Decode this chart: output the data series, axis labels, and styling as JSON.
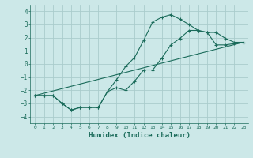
{
  "xlabel": "Humidex (Indice chaleur)",
  "xlim": [
    -0.5,
    23.5
  ],
  "ylim": [
    -4.5,
    4.5
  ],
  "xticks": [
    0,
    1,
    2,
    3,
    4,
    5,
    6,
    7,
    8,
    9,
    10,
    11,
    12,
    13,
    14,
    15,
    16,
    17,
    18,
    19,
    20,
    21,
    22,
    23
  ],
  "yticks": [
    -4,
    -3,
    -2,
    -1,
    0,
    1,
    2,
    3,
    4
  ],
  "bg_color": "#cce8e8",
  "grid_color": "#aacccc",
  "line_color": "#1a6b5a",
  "curve1_x": [
    0,
    1,
    2,
    3,
    4,
    5,
    6,
    7,
    8,
    9,
    10,
    11,
    12,
    13,
    14,
    15,
    16,
    17,
    18,
    19,
    20,
    21,
    22,
    23
  ],
  "curve1_y": [
    -2.4,
    -2.4,
    -2.4,
    -3.0,
    -3.5,
    -3.3,
    -3.3,
    -3.3,
    -2.1,
    -1.2,
    -0.2,
    0.5,
    1.8,
    3.2,
    3.55,
    3.75,
    3.4,
    3.0,
    2.55,
    2.4,
    1.45,
    1.45,
    1.55,
    1.65
  ],
  "curve2_x": [
    0,
    1,
    2,
    3,
    4,
    5,
    6,
    7,
    8,
    9,
    10,
    11,
    12,
    13,
    14,
    15,
    16,
    17,
    18,
    19,
    20,
    21,
    22,
    23
  ],
  "curve2_y": [
    -2.4,
    -2.4,
    -2.4,
    -3.0,
    -3.5,
    -3.3,
    -3.3,
    -3.3,
    -2.1,
    -1.8,
    -2.0,
    -1.3,
    -0.45,
    -0.45,
    0.45,
    1.45,
    1.95,
    2.55,
    2.55,
    2.4,
    2.4,
    1.95,
    1.65,
    1.65
  ],
  "line3_x": [
    0,
    23
  ],
  "line3_y": [
    -2.4,
    1.65
  ]
}
